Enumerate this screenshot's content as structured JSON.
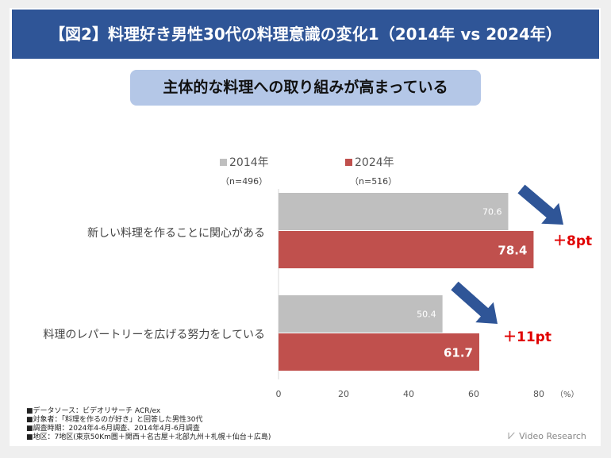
{
  "title": "【図2】料理好き男性30代の料理意識の変化1（2014年 vs 2024年）",
  "subtitle": "主体的な料理への取り組みが高まっている",
  "chart_data": {
    "type": "bar",
    "orientation": "horizontal",
    "categories": [
      "新しい料理を作ることに関心がある",
      "料理のレパートリーを広げる努力をしている"
    ],
    "series": [
      {
        "name": "2014年",
        "n": "（n=496）",
        "color": "#bfbfbf",
        "values": [
          70.6,
          50.4
        ],
        "labels": [
          "70.6",
          "50.4"
        ]
      },
      {
        "name": "2024年",
        "n": "（n=516）",
        "color": "#c0504d",
        "values": [
          78.4,
          61.7
        ],
        "labels": [
          "78.4",
          "61.7"
        ]
      }
    ],
    "xlim": [
      0,
      80
    ],
    "xticks": [
      "0",
      "20",
      "40",
      "60",
      "80"
    ],
    "xunit": "（%）",
    "annotations": [
      "＋8pt",
      "＋11pt"
    ]
  },
  "footnotes": [
    "■データソース：ビデオリサーチ ACR/ex",
    "■対象者：「料理を作るのが好き」と回答した男性30代",
    "■調査時期：2024年4-6月調査、2014年4月-6月調査",
    "■地区：7地区(東京50Km圏＋関西＋名古屋＋北部九州＋札幌＋仙台＋広島)"
  ],
  "logo": "Video Research"
}
